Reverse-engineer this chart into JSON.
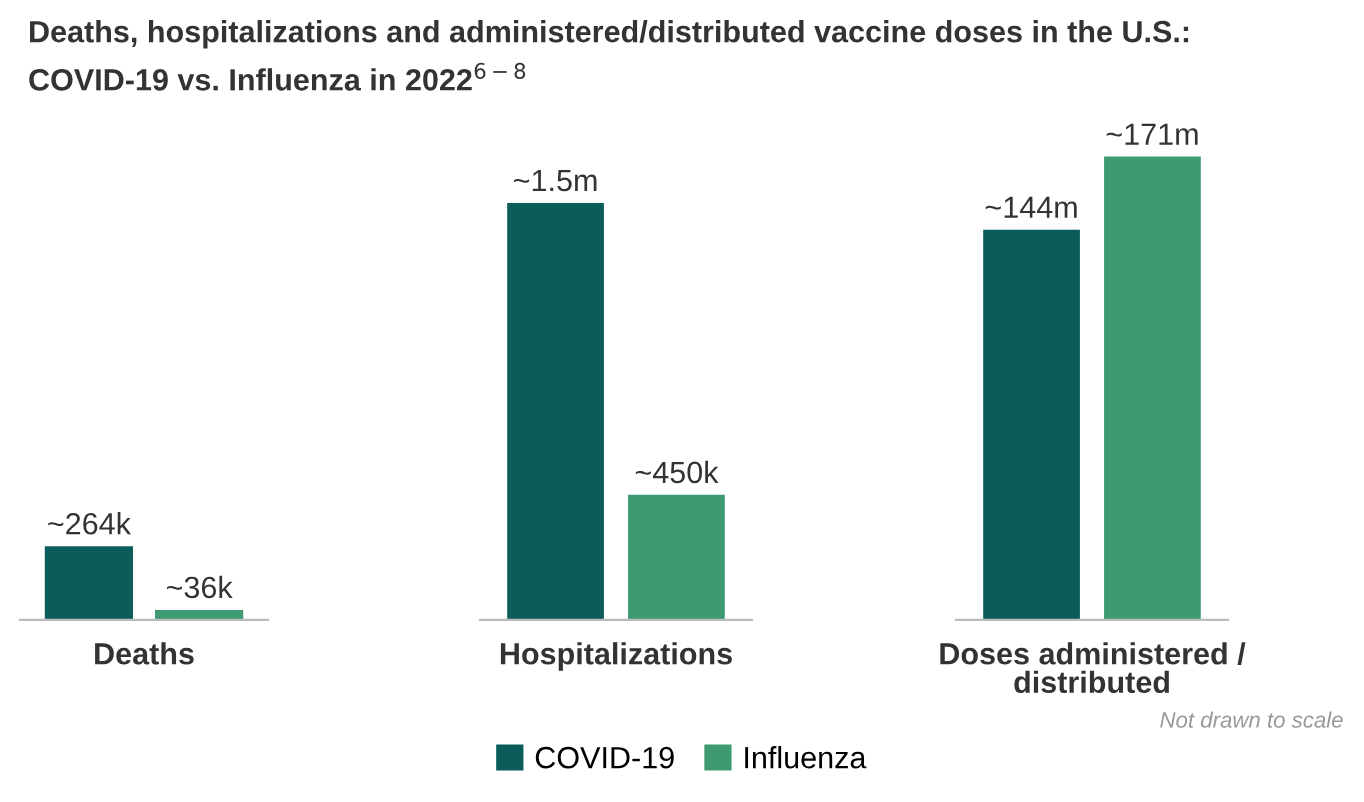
{
  "chart_data": [
    {
      "type": "bar",
      "title": "Deaths, hospitalizations and administered/distributed vaccine doses in the U.S.:\nCOVID-19 vs. Influenza in 2022$^{6−8}$",
      "categories": [
        "Deaths"
      ],
      "legend": false,
      "series": [
        {
          "color": "#0b5c5a",
          "values": [
            264000
          ],
          "value_labels": [
            "~264k"
          ]
        },
        {
          "color": "#3d9a72",
          "values": [
            36000
          ],
          "value_labels": [
            "~36k"
          ]
        }
      ]
    },
    {
      "type": "bar",
      "categories": [
        "Hospitalizations"
      ],
      "legend": "bottom",
      "series": [
        {
          "name": "COVID-19",
          "color": "#0b5c5a",
          "values": [
            1500000
          ],
          "value_labels": [
            "~1.5m"
          ]
        },
        {
          "name": "Influenza",
          "color": "#3d9a72",
          "values": [
            450000
          ],
          "value_labels": [
            "~450k"
          ]
        }
      ]
    },
    {
      "type": "bar",
      "categories": [
        "Doses administered /\ndistributed"
      ],
      "legend": false,
      "annotations": [
        "Not drawn to scale"
      ],
      "series": [
        {
          "color": "#0b5c5a",
          "values": [
            144000000
          ],
          "value_labels": [
            "~144m"
          ]
        },
        {
          "color": "#3d9a72",
          "values": [
            171000000
          ],
          "value_labels": [
            "~171m"
          ]
        }
      ]
    }
  ]
}
